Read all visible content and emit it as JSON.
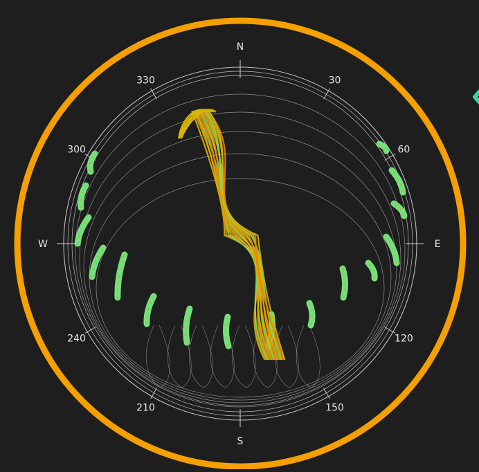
{
  "colors": {
    "background": "#1e1e1e",
    "frame_ring": "#f5a000",
    "grid": "#d8d8d8",
    "label": "#e6e6e6",
    "trail_green": "#74e07c",
    "trail_yellow": "#d9b400",
    "trail_orange": "#e88a00",
    "pointer_teal": "#3ad6a0"
  },
  "icons": {
    "pointer": "chevron-left-icon"
  },
  "chart_data": {
    "type": "polar-sky-plot",
    "cardinal_labels": [
      {
        "name": "north",
        "text": "N",
        "azimuth": 0
      },
      {
        "name": "east",
        "text": "E",
        "azimuth": 90
      },
      {
        "name": "south",
        "text": "S",
        "azimuth": 180
      },
      {
        "name": "west",
        "text": "W",
        "azimuth": 270
      }
    ],
    "azimuth_labels": [
      {
        "text": "30",
        "azimuth": 30
      },
      {
        "text": "60",
        "azimuth": 60
      },
      {
        "text": "120",
        "azimuth": 120
      },
      {
        "text": "150",
        "azimuth": 150
      },
      {
        "text": "210",
        "azimuth": 210
      },
      {
        "text": "240",
        "azimuth": 240
      },
      {
        "text": "300",
        "azimuth": 300
      },
      {
        "text": "330",
        "azimuth": 330
      }
    ],
    "grid": true
  }
}
